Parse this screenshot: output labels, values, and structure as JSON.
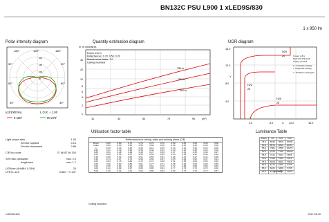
{
  "header": {
    "title": "BN132C PSU L900 1 xLED9S/830",
    "subtitle": "1 x 950 lm"
  },
  "polar": {
    "title": "Polar intensity diagram",
    "angles_top": [
      "180°",
      "120°",
      "180°"
    ],
    "angles_side": [
      "90°",
      "60°",
      "30°"
    ],
    "angles_left": [
      "90°",
      "60°",
      "30°"
    ],
    "unit": "(cd/1000 lm)",
    "lor": "L.O.R. = 1.00",
    "rings": [
      "200",
      "150",
      "100",
      "50"
    ],
    "legend_red": "0-180°",
    "legend_green": "90-270°"
  },
  "quantity": {
    "title": "Quantity estimation diagram",
    "ylabel": "nr. of luminaires",
    "info": [
      "Room: 2.8 m",
      "Reflectances: 0.70, 0.50, 0.20",
      "Maintenance factor: 1.0",
      "Ceiling mounted"
    ],
    "curves": [
      "750 lx",
      "500 lx",
      "300 lx"
    ],
    "yticks": [
      "40",
      "20",
      "10",
      "8",
      "6",
      "4",
      "2",
      "1"
    ],
    "xticks": [
      "10",
      "30",
      "50",
      "70",
      "90"
    ],
    "xunit": "(m²)"
  },
  "ugr": {
    "title": "UGR diagram",
    "yticks": [
      "16.0",
      "12.0",
      "8.0",
      "4.0"
    ],
    "xticks": [
      "4.0",
      "8.0",
      "12.0",
      "16.0"
    ],
    "ylabel": "Y",
    "xlabel": "X",
    "labels": [
      "H25",
      "H22",
      "H25",
      "H25"
    ],
    "marks": [
      "20",
      "25",
      "25"
    ],
    "legend": [
      "h room: 2.8 m",
      "Refl: 0.70 0.50 0.20",
      "Ceiling mounted",
      "H - crosswise viewing",
      "I - lengthwise viewing",
      "Y - Parallel to viewing dir."
    ]
  },
  "specs": {
    "lines": [
      [
        "Light output ratio",
        "1.00"
      ],
      [
        "Service upward",
        "0.14"
      ],
      [
        "Service downward",
        "0.86"
      ],
      [
        "CIE flux code",
        "37 66 87 86 100"
      ],
      [
        "S/H ratio  crosswise",
        "max. 2.0"
      ],
      [
        "lengthwise",
        "max. 1.7"
      ],
      [
        "UGRcee (4HxBH, 0.25H)",
        "25"
      ],
      [
        "UTE71-121:",
        "0.86C + 0.14T"
      ]
    ]
  },
  "utilisation": {
    "title": "Utilisation factor table",
    "caption": "Reflectances for ceiling, walls and working plane (CIE)",
    "row_heads": [
      "Room",
      "Index",
      "k"
    ],
    "refl_rows": [
      [
        "0.80",
        "0.80",
        "0.70",
        "0.70",
        "0.70",
        "0.70",
        "0.50",
        "0.50",
        "0.30",
        "0.30",
        "0.00"
      ],
      [
        "0.50",
        "0.50",
        "0.50",
        "0.50",
        "0.50",
        "0.30",
        "0.50",
        "0.30",
        "0.30",
        "0.30",
        "0.00"
      ],
      [
        "0.30",
        "0.10",
        "0.30",
        "0.20",
        "0.10",
        "0.10",
        "0.10",
        "0.10",
        "0.10",
        "0.10",
        "0.00"
      ]
    ],
    "k": [
      "0.60",
      "0.80",
      "1.00",
      "1.25",
      "1.50",
      "2.00",
      "2.50",
      "3.00",
      "4.00",
      "5.00"
    ],
    "rows": [
      [
        "0.41",
        "0.39",
        "0.40",
        "0.39",
        "0.38",
        "0.31",
        "0.29",
        "0.24",
        "0.28",
        "0.23",
        "0.20"
      ],
      [
        "0.51",
        "0.48",
        "0.49",
        "0.48",
        "0.47",
        "0.39",
        "0.37",
        "0.31",
        "0.35",
        "0.30",
        "0.27"
      ],
      [
        "0.59",
        "0.55",
        "0.57",
        "0.55",
        "0.53",
        "0.45",
        "0.43",
        "0.38",
        "0.41",
        "0.36",
        "0.32"
      ],
      [
        "0.66",
        "0.61",
        "0.63",
        "0.61",
        "0.59",
        "0.51",
        "0.49",
        "0.43",
        "0.47",
        "0.41",
        "0.38"
      ],
      [
        "0.74",
        "0.67",
        "0.71",
        "0.68",
        "0.65",
        "0.57",
        "0.55",
        "0.49",
        "0.52",
        "0.47",
        "0.43"
      ],
      [
        "0.83",
        "0.75",
        "0.80",
        "0.76",
        "0.72",
        "0.66",
        "0.61",
        "0.58",
        "0.59",
        "0.55",
        "0.50"
      ],
      [
        "0.90",
        "0.80",
        "0.86",
        "0.81",
        "0.77",
        "0.71",
        "0.68",
        "0.63",
        "0.64",
        "0.60",
        "0.55"
      ],
      [
        "0.95",
        "0.84",
        "0.91",
        "0.85",
        "0.81",
        "0.76",
        "0.72",
        "0.68",
        "0.68",
        "0.65",
        "0.59"
      ],
      [
        "1.01",
        "0.89",
        "0.97",
        "0.89",
        "0.85",
        "0.81",
        "0.77",
        "0.73",
        "0.73",
        "0.70",
        "0.64"
      ],
      [
        "1.06",
        "0.91",
        "1.01",
        "0.94",
        "0.88",
        "0.84",
        "0.80",
        "0.77",
        "0.76",
        "0.74",
        "0.67"
      ]
    ],
    "footer": "Ceiling mounted"
  },
  "luminance": {
    "title": "Luminance Table",
    "head": [
      "Plane",
      "C0",
      "C45",
      "C90"
    ],
    "rows": [
      [
        "45.0",
        "8945",
        "8626",
        "10835"
      ],
      [
        "50.0",
        "8574",
        "8203",
        "10457"
      ],
      [
        "55.0",
        "7981",
        "7858",
        "10276"
      ],
      [
        "60.0",
        "7678",
        "7790",
        "10045"
      ],
      [
        "65.0",
        "7412",
        "7644",
        "9826"
      ],
      [
        "70.0",
        "7329",
        "7242",
        "9374"
      ],
      [
        "75.0",
        "6944",
        "6941",
        "8964"
      ],
      [
        "80.0",
        "6774",
        "6499",
        "8720"
      ],
      [
        "85.0",
        "6431",
        "6309",
        "8795"
      ],
      [
        "90.0",
        "6728",
        "6478",
        "9263"
      ]
    ],
    "unit": "(cd/m2)"
  },
  "footer": {
    "left": "LVE2624400",
    "right": "2017-06-20"
  }
}
